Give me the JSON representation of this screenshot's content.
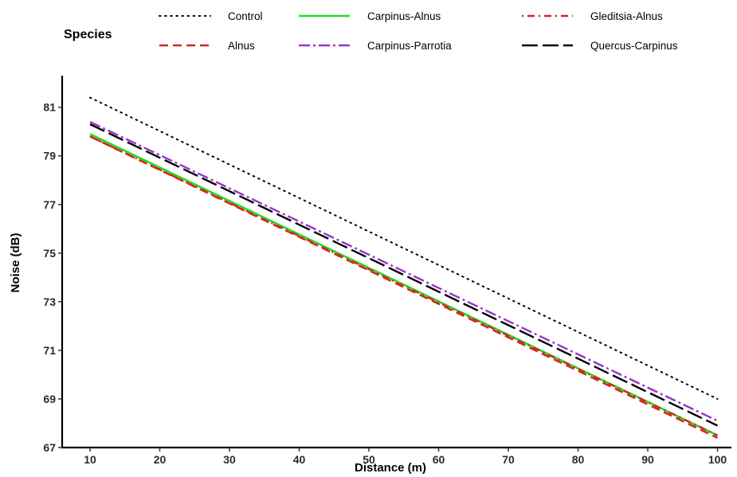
{
  "chart_data": {
    "type": "line",
    "title": "",
    "xlabel": "Distance (m)",
    "ylabel": "Noise (dB)",
    "xlim": [
      6,
      102
    ],
    "ylim": [
      67,
      82.3
    ],
    "x_ticks": [
      10,
      20,
      30,
      40,
      50,
      60,
      70,
      80,
      90,
      100
    ],
    "x_tick_labels": [
      "10",
      "20",
      "30",
      "40",
      "50",
      "60",
      "70",
      "80",
      "90",
      "100"
    ],
    "y_ticks": [
      67,
      69,
      71,
      73,
      75,
      77,
      79,
      81
    ],
    "y_tick_labels": [
      "67",
      "69",
      "71",
      "73",
      "75",
      "77",
      "79",
      "81"
    ],
    "grid": false,
    "legend": {
      "title": "Species",
      "placement": "top"
    },
    "series": [
      {
        "name": "Control",
        "x": [
          10,
          100
        ],
        "y": [
          81.4,
          69.0
        ],
        "color": "#000000",
        "style": "dotted"
      },
      {
        "name": "Carpinus-Alnus",
        "x": [
          10,
          100
        ],
        "y": [
          79.9,
          67.5
        ],
        "color": "#22dd22",
        "style": "solid"
      },
      {
        "name": "Gleditsia-Alnus",
        "x": [
          10,
          100
        ],
        "y": [
          79.8,
          67.5
        ],
        "color": "#d4281f",
        "style": "dotdash"
      },
      {
        "name": "Alnus",
        "x": [
          10,
          100
        ],
        "y": [
          79.8,
          67.4
        ],
        "color": "#d4281f",
        "style": "dashed"
      },
      {
        "name": "Carpinus-Parrotia",
        "x": [
          10,
          100
        ],
        "y": [
          80.4,
          68.1
        ],
        "color": "#9933cc",
        "style": "longdash-dot"
      },
      {
        "name": "Quercus-Carpinus",
        "x": [
          10,
          100
        ],
        "y": [
          80.3,
          67.9
        ],
        "color": "#000000",
        "style": "longdash"
      }
    ]
  }
}
